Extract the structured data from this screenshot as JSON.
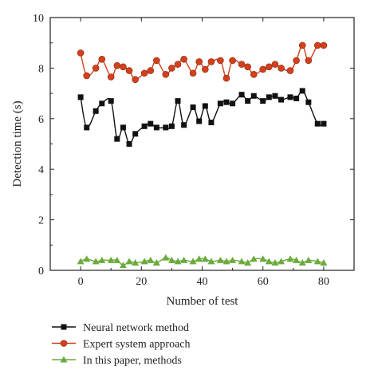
{
  "chart_data": {
    "type": "line",
    "xlabel": "Number of test",
    "ylabel": "Detection time (s)",
    "xlim": [
      -10,
      90
    ],
    "ylim": [
      0,
      10
    ],
    "xticks": [
      0,
      20,
      40,
      60,
      80
    ],
    "yticks": [
      0,
      2,
      4,
      6,
      8,
      10
    ],
    "grid": false,
    "legend_position": "bottom-left, below plot",
    "x": [
      0,
      2,
      5,
      7,
      10,
      12,
      14,
      16,
      18,
      21,
      23,
      25,
      28,
      30,
      32,
      34,
      37,
      39,
      41,
      43,
      46,
      48,
      50,
      53,
      55,
      57,
      60,
      62,
      64,
      66,
      69,
      71,
      73,
      75,
      78,
      80
    ],
    "series": [
      {
        "name": "Neural network method",
        "marker": "square",
        "color": "#111111",
        "values": [
          6.85,
          5.65,
          6.3,
          6.6,
          6.7,
          5.2,
          5.65,
          5.0,
          5.4,
          5.7,
          5.8,
          5.65,
          5.65,
          5.7,
          6.7,
          5.75,
          6.45,
          5.9,
          6.5,
          5.85,
          6.6,
          6.65,
          6.6,
          6.95,
          6.7,
          6.9,
          6.7,
          6.85,
          6.9,
          6.75,
          6.85,
          6.8,
          7.1,
          6.65,
          5.8,
          5.8
        ]
      },
      {
        "name": "Expert system approach",
        "marker": "circle",
        "color": "#d2401c",
        "values": [
          8.6,
          7.7,
          8.0,
          8.35,
          7.65,
          8.1,
          8.05,
          7.9,
          7.55,
          7.8,
          7.9,
          8.3,
          7.75,
          8.0,
          8.15,
          8.35,
          7.8,
          8.25,
          7.95,
          8.25,
          8.3,
          7.6,
          8.3,
          8.15,
          8.05,
          7.75,
          7.95,
          8.05,
          8.15,
          8.0,
          7.9,
          8.3,
          8.9,
          8.3,
          8.9,
          8.9
        ]
      },
      {
        "name": "In this paper, methods",
        "marker": "triangle",
        "color": "#6aab3b",
        "values": [
          0.35,
          0.45,
          0.35,
          0.4,
          0.4,
          0.4,
          0.2,
          0.35,
          0.3,
          0.35,
          0.4,
          0.3,
          0.5,
          0.4,
          0.35,
          0.4,
          0.35,
          0.45,
          0.45,
          0.35,
          0.4,
          0.35,
          0.4,
          0.35,
          0.3,
          0.45,
          0.45,
          0.35,
          0.3,
          0.35,
          0.45,
          0.4,
          0.3,
          0.4,
          0.35,
          0.3
        ]
      }
    ]
  }
}
